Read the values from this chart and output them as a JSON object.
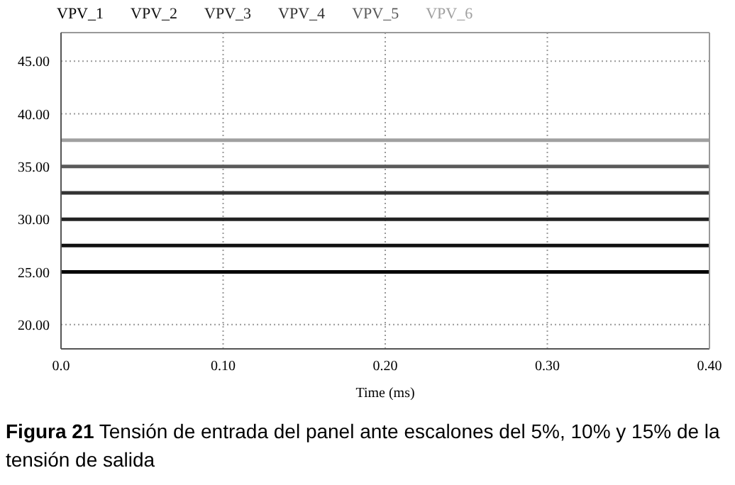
{
  "chart_data": {
    "type": "line",
    "xlabel": "Time (ms)",
    "x": [
      0,
      0.4
    ],
    "series": [
      {
        "name": "VPV_1",
        "color": "#000000",
        "values": [
          25,
          25
        ]
      },
      {
        "name": "VPV_2",
        "color": "#111111",
        "values": [
          27.5,
          27.5
        ]
      },
      {
        "name": "VPV_3",
        "color": "#222222",
        "values": [
          30,
          30
        ]
      },
      {
        "name": "VPV_4",
        "color": "#333333",
        "values": [
          32.5,
          32.5
        ]
      },
      {
        "name": "VPV_5",
        "color": "#5a5a5a",
        "values": [
          35,
          35
        ]
      },
      {
        "name": "VPV_6",
        "color": "#a0a0a0",
        "values": [
          37.5,
          37.5
        ]
      }
    ],
    "xlim": [
      0,
      0.4
    ],
    "xticks": [
      {
        "value": 0,
        "label": "0.0"
      },
      {
        "value": 0.1,
        "label": "0.10"
      },
      {
        "value": 0.2,
        "label": "0.20"
      },
      {
        "value": 0.3,
        "label": "0.30"
      },
      {
        "value": 0.4,
        "label": "0.40"
      }
    ],
    "ylim": [
      17.7,
      47.7
    ],
    "yticks": [
      {
        "value": 20,
        "label": "20.00"
      },
      {
        "value": 25,
        "label": "25.00"
      },
      {
        "value": 30,
        "label": "30.00"
      },
      {
        "value": 35,
        "label": "35.00"
      },
      {
        "value": 40,
        "label": "40.00"
      },
      {
        "value": 45,
        "label": "45.00"
      }
    ],
    "grid": true,
    "legend": "top left",
    "marker": "none",
    "line_style": "solid",
    "annotations": [
      "Figura 21 Tensión de entrada del panel ante escalones del 5%, 10% y 15% de la tensión de salida"
    ]
  }
}
